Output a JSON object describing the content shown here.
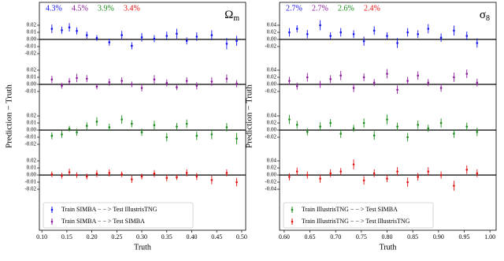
{
  "chart_data": [
    {
      "type": "scatter",
      "title": "Ω",
      "title_subscript": "m",
      "xlabel": "Truth",
      "ylabel": "Prediction − Truth",
      "xlim": [
        0.095,
        0.508
      ],
      "xticks": [
        {
          "value": 0.1,
          "label": "0.10"
        },
        0.15,
        {
          "value": 0.2,
          "label": "0.20"
        },
        0.25,
        {
          "value": 0.3,
          "label": "0.30"
        },
        0.35,
        {
          "value": 0.4,
          "label": "0.40"
        },
        0.45,
        {
          "value": 0.5,
          "label": "0.50"
        }
      ],
      "x": [
        0.12,
        0.14,
        0.155,
        0.17,
        0.19,
        0.21,
        0.235,
        0.26,
        0.28,
        0.3,
        0.325,
        0.35,
        0.37,
        0.39,
        0.41,
        0.44,
        0.47,
        0.49
      ],
      "annotations": [
        {
          "text": "4.3%",
          "color": "#1010ee"
        },
        {
          "text": "4.5%",
          "color": "#8a1a9a"
        },
        {
          "text": "3.9%",
          "color": "#1a8a1a"
        },
        {
          "text": "3.4%",
          "color": "#e01010"
        }
      ],
      "subplots": [
        {
          "ylim": [
            -0.03,
            0.03
          ],
          "yticks": [
            0.02,
            0.01,
            {
              "value": 0,
              "label": "0.00"
            },
            -0.01,
            -0.02
          ],
          "series": [
            {
              "name": "Train SIMBA − − > Test IllustrisTNG",
              "color": "#1010ee",
              "values": [
                0.015,
                0.013,
                0.017,
                0.012,
                0.006,
                0.002,
                -0.004,
                0.006,
                -0.009,
                0.003,
                0.001,
                0.005,
                0.008,
                -0.002,
                0.004,
                0.006,
                -0.006,
                -0.002
              ],
              "errors": [
                0.006,
                0.005,
                0.006,
                0.005,
                0.005,
                0.004,
                0.005,
                0.006,
                0.005,
                0.006,
                0.005,
                0.006,
                0.007,
                0.005,
                0.006,
                0.007,
                0.008,
                0.007
              ]
            }
          ]
        },
        {
          "ylim": [
            -0.03,
            0.03
          ],
          "yticks": [
            0.02,
            0.01,
            {
              "value": 0,
              "label": "0.00"
            },
            -0.01
          ],
          "series": [
            {
              "name": "Train SIMBA − − > Test SIMBA",
              "color": "#8a1a9a",
              "values": [
                0.007,
                -0.002,
                0.004,
                0.009,
                0.008,
                -0.003,
                0.003,
                0.005,
                0.0,
                -0.005,
                0.007,
                0.002,
                -0.004,
                0.005,
                -0.002,
                0.004,
                0.008,
                0.001
              ],
              "errors": [
                0.005,
                0.004,
                0.005,
                0.006,
                0.005,
                0.004,
                0.005,
                0.005,
                0.004,
                0.005,
                0.006,
                0.005,
                0.004,
                0.005,
                0.005,
                0.006,
                0.006,
                0.005
              ]
            }
          ]
        },
        {
          "ylim": [
            -0.03,
            0.03
          ],
          "yticks": [
            0.02,
            0.01,
            {
              "value": 0,
              "label": "0.00"
            },
            -0.01,
            -0.02
          ],
          "series": [
            {
              "color": "#1a8a1a",
              "values": [
                -0.008,
                -0.006,
                0.002,
                -0.003,
                0.006,
                0.012,
                0.004,
                0.015,
                0.009,
                -0.003,
                0.007,
                -0.01,
                0.005,
                0.009,
                -0.008,
                -0.006,
                0.004,
                -0.012
              ],
              "errors": [
                0.005,
                0.005,
                0.004,
                0.005,
                0.005,
                0.006,
                0.005,
                0.006,
                0.005,
                0.005,
                0.006,
                0.006,
                0.005,
                0.006,
                0.006,
                0.007,
                0.006,
                0.008
              ]
            }
          ]
        },
        {
          "ylim": [
            -0.03,
            0.03
          ],
          "yticks": [
            0.02,
            0.01,
            {
              "value": 0,
              "label": "0.00"
            },
            -0.01,
            -0.02
          ],
          "series": [
            {
              "color": "#e01010",
              "values": [
                0.001,
                -0.001,
                0.004,
                0.0,
                -0.002,
                0.002,
                0.003,
                0.001,
                -0.006,
                -0.002,
                0.002,
                -0.004,
                -0.003,
                0.003,
                -0.002,
                -0.007,
                0.003,
                -0.01
              ],
              "errors": [
                0.004,
                0.004,
                0.005,
                0.004,
                0.004,
                0.005,
                0.005,
                0.004,
                0.005,
                0.004,
                0.005,
                0.005,
                0.004,
                0.005,
                0.005,
                0.006,
                0.005,
                0.006
              ]
            }
          ]
        }
      ]
    },
    {
      "type": "scatter",
      "title": "σ",
      "title_subscript": "8",
      "xlabel": "Truth",
      "ylabel": "Prediction − Truth",
      "xlim": [
        0.591,
        1.012
      ],
      "xticks": [
        {
          "value": 0.6,
          "label": "0.60"
        },
        0.65,
        {
          "value": 0.7,
          "label": "0.70"
        },
        0.75,
        {
          "value": 0.8,
          "label": "0.80"
        },
        0.85,
        {
          "value": 0.9,
          "label": "0.90"
        },
        0.95,
        {
          "value": 1,
          "label": "1.00"
        }
      ],
      "x": [
        0.61,
        0.625,
        0.645,
        0.67,
        0.69,
        0.71,
        0.735,
        0.755,
        0.775,
        0.8,
        0.82,
        0.84,
        0.86,
        0.88,
        0.905,
        0.93,
        0.955,
        0.975
      ],
      "annotations": [
        {
          "text": "2.7%",
          "color": "#1010ee"
        },
        {
          "text": "2.7%",
          "color": "#8a1a9a"
        },
        {
          "text": "2.6%",
          "color": "#1a8a1a"
        },
        {
          "text": "2.4%",
          "color": "#e01010"
        }
      ],
      "subplots": [
        {
          "ylim": [
            -0.06,
            0.06
          ],
          "yticks": [
            0.04,
            0.02,
            {
              "value": 0,
              "label": "0.00"
            },
            -0.02
          ],
          "series": [
            {
              "color": "#1010ee",
              "values": [
                0.02,
                0.03,
                0.015,
                0.04,
                0.01,
                0.02,
                0.015,
                -0.005,
                0.025,
                0.01,
                -0.01,
                0.02,
                0.015,
                0.03,
                0.005,
                0.025,
                0.01,
                -0.01
              ],
              "errors": [
                0.012,
                0.01,
                0.012,
                0.014,
                0.01,
                0.012,
                0.011,
                0.013,
                0.012,
                0.01,
                0.014,
                0.012,
                0.011,
                0.013,
                0.012,
                0.014,
                0.012,
                0.013
              ]
            }
          ]
        },
        {
          "ylim": [
            -0.06,
            0.06
          ],
          "yticks": [
            0.04,
            0.02,
            {
              "value": 0,
              "label": "0.00"
            },
            -0.02
          ],
          "series": [
            {
              "color": "#8a1a9a",
              "values": [
                0.01,
                -0.005,
                0.02,
                0.0,
                0.015,
                0.025,
                -0.01,
                0.02,
                0.005,
                0.03,
                -0.015,
                0.01,
                0.025,
                0.005,
                -0.01,
                0.02,
                0.03,
                0.005
              ],
              "errors": [
                0.011,
                0.01,
                0.012,
                0.01,
                0.011,
                0.013,
                0.012,
                0.011,
                0.01,
                0.013,
                0.012,
                0.011,
                0.012,
                0.01,
                0.011,
                0.013,
                0.012,
                0.011
              ]
            }
          ]
        },
        {
          "ylim": [
            -0.06,
            0.06
          ],
          "yticks": [
            0.04,
            0.02,
            {
              "value": 0,
              "label": "0.00"
            },
            -0.02
          ],
          "series": [
            {
              "color": "#1a8a1a",
              "values": [
                0.03,
                0.015,
                -0.005,
                0.01,
                0.02,
                -0.01,
                0.005,
                0.02,
                -0.015,
                0.03,
                0.01,
                -0.02,
                0.015,
                0.005,
                0.02,
                -0.01,
                0.01,
                -0.005
              ],
              "errors": [
                0.013,
                0.011,
                0.01,
                0.012,
                0.011,
                0.012,
                0.01,
                0.013,
                0.012,
                0.014,
                0.011,
                0.012,
                0.012,
                0.01,
                0.013,
                0.012,
                0.011,
                0.012
              ]
            }
          ]
        },
        {
          "ylim": [
            -0.06,
            0.06
          ],
          "yticks": [
            0.04,
            0.02,
            {
              "value": 0,
              "label": "0.00"
            },
            -0.02,
            -0.04
          ],
          "series": [
            {
              "name": "Train IllustrisTNG − − > Test SIMBA",
              "color": "#1a8a1a",
              "legend_only": true
            },
            {
              "name": "Train IllustrisTNG − − > Test IllustrisTNG",
              "color": "#e01010",
              "values": [
                -0.005,
                0.01,
                0.0,
                -0.01,
                0.005,
                0.01,
                0.03,
                -0.015,
                0.005,
                -0.01,
                0.01,
                -0.02,
                -0.005,
                0.01,
                0.0,
                -0.03,
                0.015,
                0.005
              ],
              "errors": [
                0.01,
                0.011,
                0.01,
                0.012,
                0.011,
                0.01,
                0.014,
                0.012,
                0.011,
                0.01,
                0.012,
                0.013,
                0.011,
                0.012,
                0.01,
                0.014,
                0.012,
                0.011
              ]
            }
          ]
        }
      ]
    }
  ]
}
